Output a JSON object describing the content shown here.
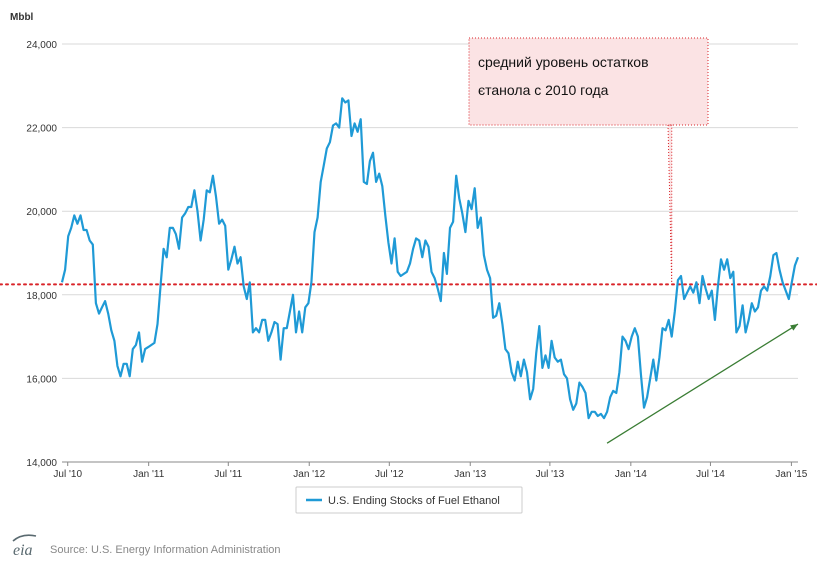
{
  "chart_data": {
    "type": "line",
    "unit_label": "Mbbl",
    "ylim": [
      14000,
      24000
    ],
    "y_ticks": [
      14000,
      16000,
      18000,
      20000,
      22000,
      24000
    ],
    "y_tick_labels": [
      "14,000",
      "16,000",
      "18,000",
      "20,000",
      "22,000",
      "24,000"
    ],
    "x_range": [
      "2010-06-18",
      "2015-01-16"
    ],
    "x_ticks": [
      {
        "date": "2010-07-01",
        "label": "Jul '10"
      },
      {
        "date": "2011-01-01",
        "label": "Jan '11"
      },
      {
        "date": "2011-07-01",
        "label": "Jul '11"
      },
      {
        "date": "2012-01-01",
        "label": "Jan '12"
      },
      {
        "date": "2012-07-01",
        "label": "Jul '12"
      },
      {
        "date": "2013-01-01",
        "label": "Jan '13"
      },
      {
        "date": "2013-07-01",
        "label": "Jul '13"
      },
      {
        "date": "2014-01-01",
        "label": "Jan '14"
      },
      {
        "date": "2014-07-01",
        "label": "Jul '14"
      },
      {
        "date": "2015-01-01",
        "label": "Jan '15"
      }
    ],
    "grid": true,
    "legend_position": "bottom-center",
    "series": [
      {
        "name": "U.S. Ending Stocks of Fuel Ethanol",
        "color": "#1f9ad6",
        "points": [
          [
            "2010-06-18",
            18300
          ],
          [
            "2010-06-25",
            18600
          ],
          [
            "2010-07-02",
            19400
          ],
          [
            "2010-07-09",
            19600
          ],
          [
            "2010-07-16",
            19900
          ],
          [
            "2010-07-23",
            19700
          ],
          [
            "2010-07-30",
            19900
          ],
          [
            "2010-08-06",
            19550
          ],
          [
            "2010-08-13",
            19550
          ],
          [
            "2010-08-20",
            19300
          ],
          [
            "2010-08-27",
            19200
          ],
          [
            "2010-09-03",
            17800
          ],
          [
            "2010-09-10",
            17550
          ],
          [
            "2010-09-17",
            17700
          ],
          [
            "2010-09-24",
            17850
          ],
          [
            "2010-10-01",
            17550
          ],
          [
            "2010-10-08",
            17150
          ],
          [
            "2010-10-15",
            16900
          ],
          [
            "2010-10-22",
            16300
          ],
          [
            "2010-10-29",
            16050
          ],
          [
            "2010-11-05",
            16350
          ],
          [
            "2010-11-12",
            16350
          ],
          [
            "2010-11-19",
            16050
          ],
          [
            "2010-11-26",
            16700
          ],
          [
            "2010-12-03",
            16800
          ],
          [
            "2010-12-10",
            17100
          ],
          [
            "2010-12-17",
            16400
          ],
          [
            "2010-12-24",
            16700
          ],
          [
            "2010-12-31",
            16750
          ],
          [
            "2011-01-07",
            16800
          ],
          [
            "2011-01-14",
            16850
          ],
          [
            "2011-01-21",
            17300
          ],
          [
            "2011-01-28",
            18200
          ],
          [
            "2011-02-04",
            19100
          ],
          [
            "2011-02-11",
            18900
          ],
          [
            "2011-02-18",
            19600
          ],
          [
            "2011-02-25",
            19600
          ],
          [
            "2011-03-04",
            19450
          ],
          [
            "2011-03-11",
            19100
          ],
          [
            "2011-03-18",
            19850
          ],
          [
            "2011-03-25",
            19950
          ],
          [
            "2011-04-01",
            20100
          ],
          [
            "2011-04-08",
            20100
          ],
          [
            "2011-04-15",
            20500
          ],
          [
            "2011-04-22",
            20000
          ],
          [
            "2011-04-29",
            19300
          ],
          [
            "2011-05-06",
            19800
          ],
          [
            "2011-05-13",
            20500
          ],
          [
            "2011-05-20",
            20450
          ],
          [
            "2011-05-27",
            20850
          ],
          [
            "2011-06-03",
            20350
          ],
          [
            "2011-06-10",
            19700
          ],
          [
            "2011-06-17",
            19800
          ],
          [
            "2011-06-24",
            19650
          ],
          [
            "2011-07-01",
            18600
          ],
          [
            "2011-07-08",
            18850
          ],
          [
            "2011-07-15",
            19150
          ],
          [
            "2011-07-22",
            18750
          ],
          [
            "2011-07-29",
            18900
          ],
          [
            "2011-08-05",
            18200
          ],
          [
            "2011-08-12",
            17900
          ],
          [
            "2011-08-19",
            18300
          ],
          [
            "2011-08-26",
            17100
          ],
          [
            "2011-09-02",
            17200
          ],
          [
            "2011-09-09",
            17100
          ],
          [
            "2011-09-16",
            17400
          ],
          [
            "2011-09-23",
            17400
          ],
          [
            "2011-09-30",
            16900
          ],
          [
            "2011-10-07",
            17100
          ],
          [
            "2011-10-14",
            17350
          ],
          [
            "2011-10-21",
            17300
          ],
          [
            "2011-10-28",
            16450
          ],
          [
            "2011-11-04",
            17200
          ],
          [
            "2011-11-11",
            17200
          ],
          [
            "2011-11-18",
            17600
          ],
          [
            "2011-11-25",
            18000
          ],
          [
            "2011-12-02",
            17100
          ],
          [
            "2011-12-09",
            17600
          ],
          [
            "2011-12-16",
            17100
          ],
          [
            "2011-12-23",
            17700
          ],
          [
            "2011-12-30",
            17800
          ],
          [
            "2012-01-06",
            18300
          ],
          [
            "2012-01-13",
            19500
          ],
          [
            "2012-01-20",
            19850
          ],
          [
            "2012-01-27",
            20700
          ],
          [
            "2012-02-03",
            21100
          ],
          [
            "2012-02-10",
            21500
          ],
          [
            "2012-02-17",
            21650
          ],
          [
            "2012-02-24",
            22050
          ],
          [
            "2012-03-02",
            22100
          ],
          [
            "2012-03-09",
            22000
          ],
          [
            "2012-03-16",
            22700
          ],
          [
            "2012-03-23",
            22600
          ],
          [
            "2012-03-30",
            22650
          ],
          [
            "2012-04-06",
            21800
          ],
          [
            "2012-04-13",
            22100
          ],
          [
            "2012-04-20",
            21900
          ],
          [
            "2012-04-27",
            22200
          ],
          [
            "2012-05-04",
            20700
          ],
          [
            "2012-05-11",
            20650
          ],
          [
            "2012-05-18",
            21200
          ],
          [
            "2012-05-25",
            21400
          ],
          [
            "2012-06-01",
            20700
          ],
          [
            "2012-06-08",
            20900
          ],
          [
            "2012-06-15",
            20600
          ],
          [
            "2012-06-22",
            19900
          ],
          [
            "2012-06-29",
            19250
          ],
          [
            "2012-07-06",
            18750
          ],
          [
            "2012-07-13",
            19350
          ],
          [
            "2012-07-20",
            18550
          ],
          [
            "2012-07-27",
            18450
          ],
          [
            "2012-08-03",
            18500
          ],
          [
            "2012-08-10",
            18550
          ],
          [
            "2012-08-17",
            18750
          ],
          [
            "2012-08-24",
            19100
          ],
          [
            "2012-08-31",
            19350
          ],
          [
            "2012-09-07",
            19300
          ],
          [
            "2012-09-14",
            18900
          ],
          [
            "2012-09-21",
            19300
          ],
          [
            "2012-09-28",
            19150
          ],
          [
            "2012-10-05",
            18550
          ],
          [
            "2012-10-12",
            18400
          ],
          [
            "2012-10-19",
            18150
          ],
          [
            "2012-10-26",
            17850
          ],
          [
            "2012-11-02",
            19000
          ],
          [
            "2012-11-09",
            18500
          ],
          [
            "2012-11-16",
            19600
          ],
          [
            "2012-11-23",
            19750
          ],
          [
            "2012-11-30",
            20850
          ],
          [
            "2012-12-07",
            20300
          ],
          [
            "2012-12-14",
            19950
          ],
          [
            "2012-12-21",
            19500
          ],
          [
            "2012-12-28",
            20250
          ],
          [
            "2013-01-04",
            20050
          ],
          [
            "2013-01-11",
            20550
          ],
          [
            "2013-01-18",
            19600
          ],
          [
            "2013-01-25",
            19850
          ],
          [
            "2013-02-01",
            18950
          ],
          [
            "2013-02-08",
            18600
          ],
          [
            "2013-02-15",
            18400
          ],
          [
            "2013-02-22",
            17450
          ],
          [
            "2013-03-01",
            17500
          ],
          [
            "2013-03-08",
            17800
          ],
          [
            "2013-03-15",
            17300
          ],
          [
            "2013-03-22",
            16700
          ],
          [
            "2013-03-29",
            16600
          ],
          [
            "2013-04-05",
            16150
          ],
          [
            "2013-04-12",
            15950
          ],
          [
            "2013-04-19",
            16400
          ],
          [
            "2013-04-26",
            16050
          ],
          [
            "2013-05-03",
            16450
          ],
          [
            "2013-05-10",
            16150
          ],
          [
            "2013-05-17",
            15500
          ],
          [
            "2013-05-24",
            15750
          ],
          [
            "2013-05-31",
            16600
          ],
          [
            "2013-06-07",
            17250
          ],
          [
            "2013-06-14",
            16250
          ],
          [
            "2013-06-21",
            16550
          ],
          [
            "2013-06-28",
            16250
          ],
          [
            "2013-07-05",
            16900
          ],
          [
            "2013-07-12",
            16500
          ],
          [
            "2013-07-19",
            16400
          ],
          [
            "2013-07-26",
            16450
          ],
          [
            "2013-08-02",
            16100
          ],
          [
            "2013-08-09",
            16000
          ],
          [
            "2013-08-16",
            15500
          ],
          [
            "2013-08-23",
            15250
          ],
          [
            "2013-08-30",
            15400
          ],
          [
            "2013-09-06",
            15900
          ],
          [
            "2013-09-13",
            15800
          ],
          [
            "2013-09-20",
            15650
          ],
          [
            "2013-09-27",
            15050
          ],
          [
            "2013-10-04",
            15200
          ],
          [
            "2013-10-11",
            15200
          ],
          [
            "2013-10-18",
            15100
          ],
          [
            "2013-10-25",
            15150
          ],
          [
            "2013-11-01",
            15050
          ],
          [
            "2013-11-08",
            15200
          ],
          [
            "2013-11-15",
            15550
          ],
          [
            "2013-11-22",
            15700
          ],
          [
            "2013-11-29",
            15650
          ],
          [
            "2013-12-06",
            16150
          ],
          [
            "2013-12-13",
            17000
          ],
          [
            "2013-12-20",
            16900
          ],
          [
            "2013-12-27",
            16700
          ],
          [
            "2014-01-03",
            17000
          ],
          [
            "2014-01-10",
            17200
          ],
          [
            "2014-01-17",
            17000
          ],
          [
            "2014-01-24",
            16100
          ],
          [
            "2014-01-31",
            15300
          ],
          [
            "2014-02-07",
            15550
          ],
          [
            "2014-02-14",
            16000
          ],
          [
            "2014-02-21",
            16450
          ],
          [
            "2014-02-28",
            15950
          ],
          [
            "2014-03-07",
            16500
          ],
          [
            "2014-03-14",
            17200
          ],
          [
            "2014-03-21",
            17150
          ],
          [
            "2014-03-28",
            17400
          ],
          [
            "2014-04-04",
            17000
          ],
          [
            "2014-04-11",
            17600
          ],
          [
            "2014-04-18",
            18350
          ],
          [
            "2014-04-25",
            18450
          ],
          [
            "2014-05-02",
            17900
          ],
          [
            "2014-05-09",
            18050
          ],
          [
            "2014-05-16",
            18200
          ],
          [
            "2014-05-23",
            18050
          ],
          [
            "2014-05-30",
            18300
          ],
          [
            "2014-06-06",
            17800
          ],
          [
            "2014-06-13",
            18450
          ],
          [
            "2014-06-20",
            18150
          ],
          [
            "2014-06-27",
            17900
          ],
          [
            "2014-07-04",
            18100
          ],
          [
            "2014-07-11",
            17400
          ],
          [
            "2014-07-18",
            18200
          ],
          [
            "2014-07-25",
            18850
          ],
          [
            "2014-08-01",
            18600
          ],
          [
            "2014-08-08",
            18850
          ],
          [
            "2014-08-15",
            18400
          ],
          [
            "2014-08-22",
            18550
          ],
          [
            "2014-08-29",
            17100
          ],
          [
            "2014-09-05",
            17250
          ],
          [
            "2014-09-12",
            17750
          ],
          [
            "2014-09-19",
            17100
          ],
          [
            "2014-09-26",
            17400
          ],
          [
            "2014-10-03",
            17800
          ],
          [
            "2014-10-10",
            17600
          ],
          [
            "2014-10-17",
            17700
          ],
          [
            "2014-10-24",
            18100
          ],
          [
            "2014-10-31",
            18200
          ],
          [
            "2014-11-07",
            18100
          ],
          [
            "2014-11-14",
            18450
          ],
          [
            "2014-11-21",
            18950
          ],
          [
            "2014-11-28",
            19000
          ],
          [
            "2014-12-05",
            18600
          ],
          [
            "2014-12-12",
            18300
          ],
          [
            "2014-12-19",
            18100
          ],
          [
            "2014-12-26",
            17900
          ],
          [
            "2015-01-02",
            18300
          ],
          [
            "2015-01-09",
            18700
          ],
          [
            "2015-01-16",
            18900
          ]
        ]
      }
    ],
    "average_line": {
      "value": 18250,
      "color": "#d9252a"
    },
    "trend_arrow": {
      "from": [
        "2013-11-08",
        14450
      ],
      "to": [
        "2015-01-16",
        17300
      ],
      "color": "#3a7d34"
    },
    "callout": {
      "lines": [
        "средний  уровень остатков",
        "єтанола с 2010 года"
      ],
      "fill": "#fbe3e4",
      "border": "#d9252a",
      "pointer_date": "2014-04-04",
      "pointer_value": 18250
    }
  },
  "source_text": "Source: U.S. Energy Information Administration",
  "logo_text": "eia",
  "colors": {
    "grid": "#d9d9d9",
    "axis": "#888888"
  }
}
